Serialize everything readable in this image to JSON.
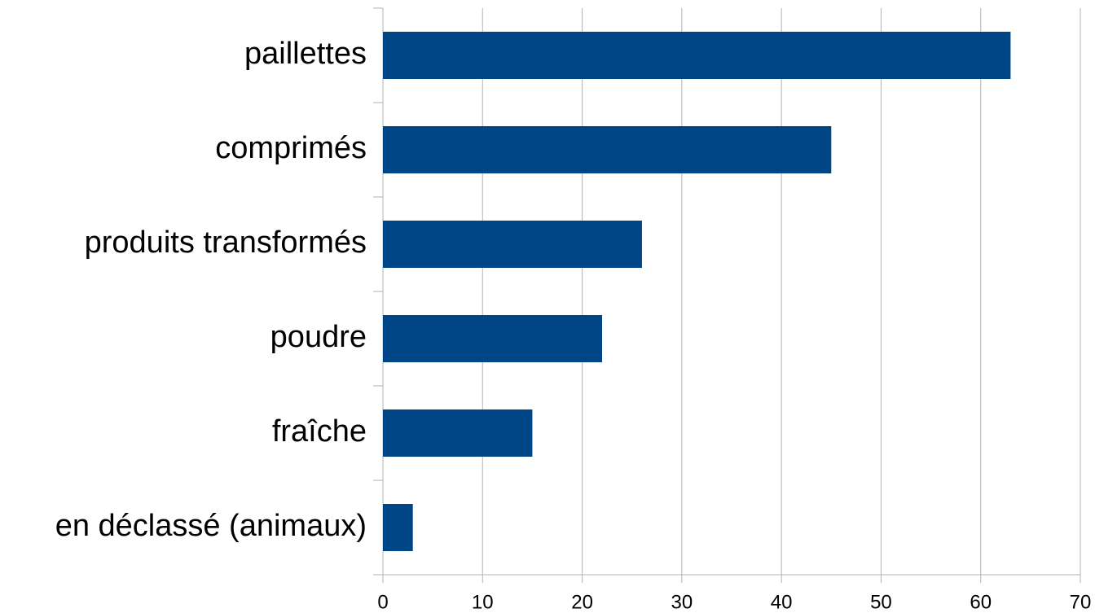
{
  "chart_data": {
    "type": "bar",
    "orientation": "horizontal",
    "categories": [
      "paillettes",
      "comprimés",
      "produits transformés",
      "poudre",
      "fraîche",
      "en déclassé (animaux)"
    ],
    "values": [
      63,
      45,
      26,
      22,
      15,
      3
    ],
    "color": "#004586",
    "xlim": [
      0,
      70
    ],
    "xticks": [
      0,
      10,
      20,
      30,
      40,
      50,
      60,
      70
    ],
    "grid": true
  }
}
